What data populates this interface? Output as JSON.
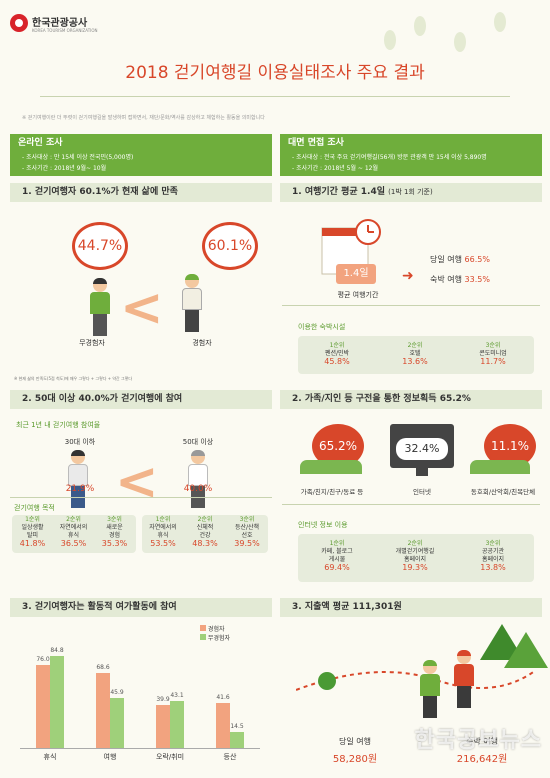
{
  "logo": {
    "name": "한국관광공사",
    "sub": "KOREA TOURISM ORGANIZATION"
  },
  "title": "2018 걷기여행길 이용실태조사 주요 결과",
  "note": "※ 걷기여행이란 더 뚜렷이 걷기여행길을 발생하며 접하면서, 재단/문화/역사를 감상하고 체험하는 활동을 의미합니다",
  "online": {
    "band": "온라인 조사",
    "target": "- 조사대상 : 만 15세 이상 전국민(5,000명)",
    "period": "- 조사기간 : 2018년 9월~ 10월"
  },
  "offline": {
    "band": "대면 면접 조사",
    "target": "- 조사대상 : 전국 주요 걷기여행길(56개) 방문 관광객 만 15세 이상 5,890명",
    "period": "- 조사기간 : 2018년 5월 ~ 12월"
  },
  "s1": {
    "title": "1. 걷기여행자 60.1%가 현재 삶에 만족",
    "non_pct": "44.7%",
    "exp_pct": "60.1%",
    "non_label": "무경험자",
    "exp_label": "경험자",
    "footnote": "※ 현재 삶의 만족도(5점 척도)에 매우 그렇다 + 그렇다 + 약간 그렇다"
  },
  "s2": {
    "title": "2. 50대 이상 40.0%가 걷기여행에 참여",
    "subtitle": "최근 1년 내 걷기여행 참여율",
    "young_label": "30대 이하",
    "old_label": "50대 이상",
    "young_pct": "21.9%",
    "old_pct": "40.0%",
    "purpose_label": "걷기여행 목적",
    "young_ranks": [
      {
        "rank": "1순위",
        "item": "일상생활\n탈피",
        "val": "41.8%"
      },
      {
        "rank": "2순위",
        "item": "자연에서의\n휴식",
        "val": "36.5%"
      },
      {
        "rank": "3순위",
        "item": "새로운\n경험",
        "val": "35.3%"
      }
    ],
    "old_ranks": [
      {
        "rank": "1순위",
        "item": "자연에서의\n휴식",
        "val": "53.5%"
      },
      {
        "rank": "2순위",
        "item": "신체적\n건강",
        "val": "48.3%"
      },
      {
        "rank": "3순위",
        "item": "등산/산책\n선호",
        "val": "39.5%"
      }
    ]
  },
  "s3": {
    "title": "3. 걷기여행자는 활동적 여가활동에 참여"
  },
  "r1": {
    "title": "1. 여행기간 평균 1.4일",
    "title_sub": "(1박 1회 기준)",
    "avg": "1.4일",
    "avg_label": "평균 여행기간",
    "day_trip": "당일 여행",
    "day_trip_pct": "66.5%",
    "overnight": "숙박 여행",
    "overnight_pct": "33.5%",
    "lodging_label": "이용한 숙박시설",
    "lodging": [
      {
        "rank": "1순위",
        "item": "펜션/민박",
        "val": "45.8%"
      },
      {
        "rank": "2순위",
        "item": "호텔",
        "val": "13.6%"
      },
      {
        "rank": "3순위",
        "item": "콘도미니엄",
        "val": "11.7%"
      }
    ]
  },
  "r2": {
    "title": "2. 가족/지인 등 구전을 통한 정보획득 65.2%",
    "family_pct": "65.2%",
    "internet_pct": "32.4%",
    "club_pct": "11.1%",
    "family_label": "가족/친지/친구/동료 등",
    "internet_label": "인터넷",
    "club_label": "동호회/산악회/친목단체",
    "internet_info_label": "인터넷 정보 이용",
    "internet_ranks": [
      {
        "rank": "1순위",
        "item": "카페, 블로그\n게시물",
        "val": "69.4%"
      },
      {
        "rank": "2순위",
        "item": "개별걷기여행길\n홈페이지",
        "val": "19.3%"
      },
      {
        "rank": "3순위",
        "item": "공공기관\n홈페이지",
        "val": "13.8%"
      }
    ]
  },
  "r3": {
    "title": "3. 지출액 평균 111,301원",
    "day_label": "당일 여행",
    "day_val": "58,280원",
    "night_label": "숙박 여행",
    "night_val": "216,642원"
  },
  "watermark": "한국공보뉴스",
  "chart_data": {
    "type": "bar",
    "categories": [
      "휴식",
      "여행",
      "오락/취미",
      "등산"
    ],
    "series": [
      {
        "name": "경험자",
        "values": [
          76.0,
          68.6,
          39.9,
          41.6
        ]
      },
      {
        "name": "무경험자",
        "values": [
          84.8,
          45.9,
          43.1,
          14.5
        ]
      }
    ],
    "colors": {
      "경험자": "#f2a37f",
      "무경험자": "#9fd07a"
    },
    "ylim": [
      0,
      90
    ],
    "legend": "top-right",
    "grid": false
  }
}
